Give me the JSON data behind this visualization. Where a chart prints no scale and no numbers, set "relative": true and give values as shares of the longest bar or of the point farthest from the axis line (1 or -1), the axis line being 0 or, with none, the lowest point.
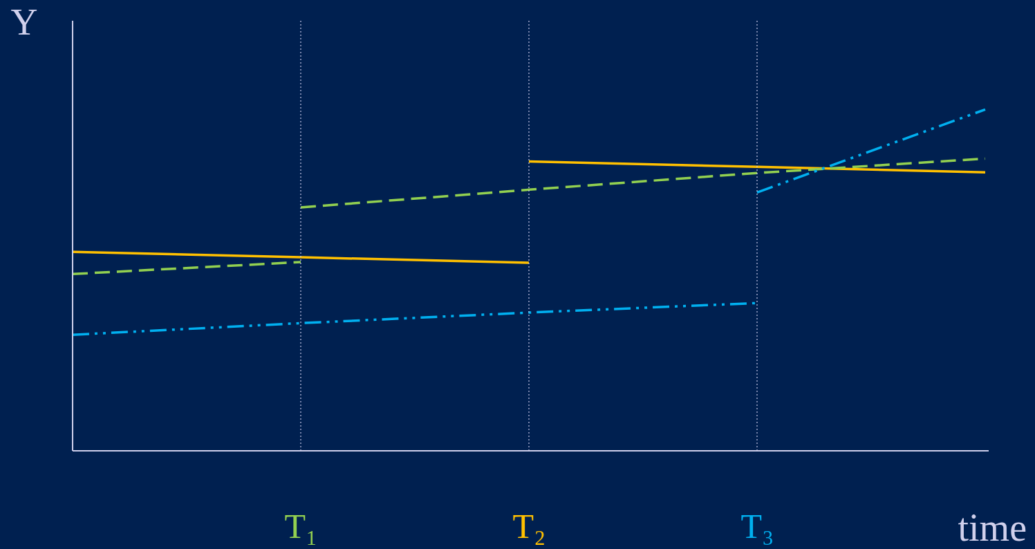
{
  "chart_data": {
    "type": "line",
    "relative": true,
    "xlabel": "time",
    "ylabel": "Y",
    "marker": "none",
    "categories": [
      null,
      "T₁",
      "T₂",
      "T₃",
      null
    ],
    "series": [
      {
        "color": "#ffc000",
        "line_style": "solid",
        "values": [
          0.583,
          0.567,
          0.551,
          null,
          null
        ]
      },
      {
        "color": "#ffc000",
        "line_style": "solid",
        "values": [
          null,
          null,
          0.848,
          0.832,
          0.816
        ]
      },
      {
        "color": "#92d050",
        "line_style": "dashed",
        "values": [
          0.518,
          0.553,
          null,
          null,
          null
        ]
      },
      {
        "color": "#92d050",
        "line_style": "dashed",
        "values": [
          null,
          0.713,
          0.765,
          0.814,
          0.856
        ]
      },
      {
        "color": "#00b0f0",
        "line_style": "dotted",
        "values": [
          0.34,
          0.374,
          0.405,
          0.433,
          null
        ]
      },
      {
        "color": "#00b0f0",
        "line_style": "dotted",
        "values": [
          null,
          null,
          null,
          0.757,
          1.0
        ]
      }
    ],
    "ref_lines": [
      {
        "axis": "x",
        "value": "T₁",
        "line_style": "dotted"
      },
      {
        "axis": "x",
        "value": "T₂",
        "line_style": "dotted"
      },
      {
        "axis": "x",
        "value": "T₃",
        "line_style": "dotted"
      }
    ]
  }
}
